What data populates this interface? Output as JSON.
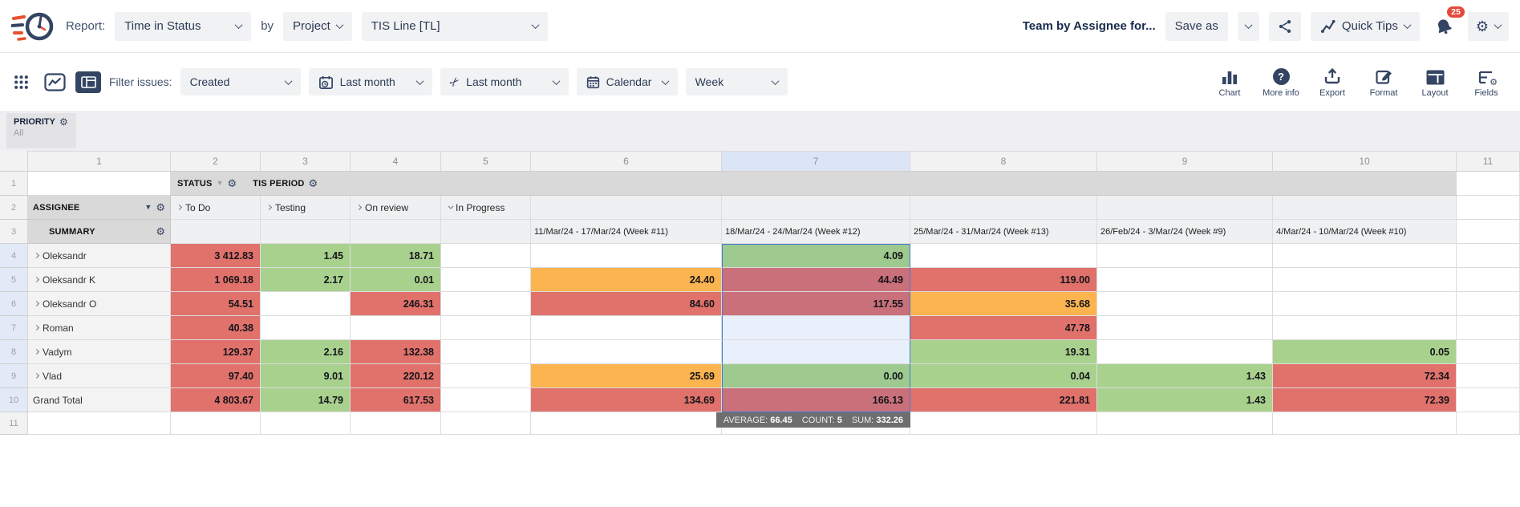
{
  "icons": {
    "gear": "⚙",
    "funnel": "▼",
    "scissors": "✂",
    "question": "?"
  },
  "colors": {
    "cell_red": "#e0716b",
    "cell_green": "#a9d18e",
    "cell_orange": "#fbb450",
    "cell_red_selected": "#c9707a",
    "cell_green_selected": "#9ec98f",
    "cell_selected_empty": "#e9effb",
    "selection_border": "#3f7bd7",
    "icon_navy": "#344563",
    "badge_red": "#e5493b"
  },
  "topbar": {
    "report_label": "Report:",
    "report_type": "Time in Status",
    "by_label": "by",
    "group_by": "Project",
    "project": "TIS Line [TL]",
    "report_name": "Team by Assignee for...",
    "save_as_label": "Save as",
    "quick_tips_label": "Quick Tips",
    "notification_count": "25"
  },
  "toolbar": {
    "filter_issues_label": "Filter issues:",
    "created_filter": "Created",
    "date_range": "Last month",
    "trim_range": "Last month",
    "calendar_mode": "Calendar",
    "time_unit": "Week",
    "actions": [
      "Chart",
      "More info",
      "Export",
      "Format",
      "Layout",
      "Fields"
    ]
  },
  "filter_chip": {
    "label": "PRIORITY",
    "value": "All"
  },
  "grid": {
    "selected_column": "7",
    "column_numbers": [
      "1",
      "2",
      "3",
      "4",
      "5",
      "6",
      "7",
      "8",
      "9",
      "10",
      "11"
    ],
    "header_row_numbers": [
      "1",
      "2",
      "3"
    ],
    "row1": {
      "status_label": "STATUS",
      "tis_period_label": "TIS PERIOD"
    },
    "row2": {
      "assignee_label": "ASSIGNEE",
      "statuses": [
        "To Do",
        "Testing",
        "On review",
        "In Progress"
      ]
    },
    "row3": {
      "summary_label": "SUMMARY",
      "periods": [
        "11/Mar/24 - 17/Mar/24 (Week #11)",
        "18/Mar/24 - 24/Mar/24 (Week #12)",
        "25/Mar/24 - 31/Mar/24 (Week #13)",
        "26/Feb/24 - 3/Mar/24 (Week #9)",
        "4/Mar/24 - 10/Mar/24 (Week #10)"
      ]
    },
    "rows": [
      {
        "num": "4",
        "name": "Oleksandr",
        "chev": true,
        "hl": true,
        "cells": [
          {
            "v": "3 412.83",
            "s": "red"
          },
          {
            "v": "1.45",
            "s": "green"
          },
          {
            "v": "18.71",
            "s": "green"
          },
          {
            "v": "",
            "s": "none"
          },
          {
            "v": "",
            "s": "none"
          },
          {
            "v": "4.09",
            "s": "selGreen"
          },
          {
            "v": "",
            "s": "none"
          },
          {
            "v": "",
            "s": "none"
          },
          {
            "v": "",
            "s": "none"
          },
          {
            "v": "",
            "s": "none"
          }
        ]
      },
      {
        "num": "5",
        "name": "Oleksandr K",
        "chev": true,
        "hl": true,
        "cells": [
          {
            "v": "1 069.18",
            "s": "red"
          },
          {
            "v": "2.17",
            "s": "green"
          },
          {
            "v": "0.01",
            "s": "green"
          },
          {
            "v": "",
            "s": "none"
          },
          {
            "v": "24.40",
            "s": "orange"
          },
          {
            "v": "44.49",
            "s": "selRed"
          },
          {
            "v": "119.00",
            "s": "red"
          },
          {
            "v": "",
            "s": "none"
          },
          {
            "v": "",
            "s": "none"
          },
          {
            "v": "",
            "s": "none"
          }
        ]
      },
      {
        "num": "6",
        "name": "Oleksandr O",
        "chev": true,
        "hl": true,
        "cells": [
          {
            "v": "54.51",
            "s": "red"
          },
          {
            "v": "",
            "s": "none"
          },
          {
            "v": "246.31",
            "s": "red"
          },
          {
            "v": "",
            "s": "none"
          },
          {
            "v": "84.60",
            "s": "red"
          },
          {
            "v": "117.55",
            "s": "selRed"
          },
          {
            "v": "35.68",
            "s": "orange"
          },
          {
            "v": "",
            "s": "none"
          },
          {
            "v": "",
            "s": "none"
          },
          {
            "v": "",
            "s": "none"
          }
        ]
      },
      {
        "num": "7",
        "name": "Roman",
        "chev": true,
        "hl": true,
        "cells": [
          {
            "v": "40.38",
            "s": "red"
          },
          {
            "v": "",
            "s": "none"
          },
          {
            "v": "",
            "s": "none"
          },
          {
            "v": "",
            "s": "none"
          },
          {
            "v": "",
            "s": "none"
          },
          {
            "v": "",
            "s": "selEmpty"
          },
          {
            "v": "47.78",
            "s": "red"
          },
          {
            "v": "",
            "s": "none"
          },
          {
            "v": "",
            "s": "none"
          },
          {
            "v": "",
            "s": "none"
          }
        ]
      },
      {
        "num": "8",
        "name": "Vadym",
        "chev": true,
        "hl": true,
        "cells": [
          {
            "v": "129.37",
            "s": "red"
          },
          {
            "v": "2.16",
            "s": "green"
          },
          {
            "v": "132.38",
            "s": "red"
          },
          {
            "v": "",
            "s": "none"
          },
          {
            "v": "",
            "s": "none"
          },
          {
            "v": "",
            "s": "selEmpty"
          },
          {
            "v": "19.31",
            "s": "green"
          },
          {
            "v": "",
            "s": "none"
          },
          {
            "v": "0.05",
            "s": "green"
          },
          {
            "v": "",
            "s": "none"
          }
        ]
      },
      {
        "num": "9",
        "name": "Vlad",
        "chev": true,
        "hl": true,
        "cells": [
          {
            "v": "97.40",
            "s": "red"
          },
          {
            "v": "9.01",
            "s": "green"
          },
          {
            "v": "220.12",
            "s": "red"
          },
          {
            "v": "",
            "s": "none"
          },
          {
            "v": "25.69",
            "s": "orange"
          },
          {
            "v": "0.00",
            "s": "selGreen"
          },
          {
            "v": "0.04",
            "s": "green"
          },
          {
            "v": "1.43",
            "s": "green"
          },
          {
            "v": "72.34",
            "s": "red"
          },
          {
            "v": "",
            "s": "none"
          }
        ]
      },
      {
        "num": "10",
        "name": "Grand Total",
        "chev": false,
        "hl": true,
        "cells": [
          {
            "v": "4 803.67",
            "s": "red"
          },
          {
            "v": "14.79",
            "s": "green"
          },
          {
            "v": "617.53",
            "s": "red"
          },
          {
            "v": "",
            "s": "none"
          },
          {
            "v": "134.69",
            "s": "red"
          },
          {
            "v": "166.13",
            "s": "selRed"
          },
          {
            "v": "221.81",
            "s": "red"
          },
          {
            "v": "1.43",
            "s": "green"
          },
          {
            "v": "72.39",
            "s": "red"
          },
          {
            "v": "",
            "s": "none"
          }
        ]
      },
      {
        "num": "11",
        "name": "",
        "chev": false,
        "hl": false,
        "cells": [
          {
            "v": "",
            "s": "none"
          },
          {
            "v": "",
            "s": "none"
          },
          {
            "v": "",
            "s": "none"
          },
          {
            "v": "",
            "s": "none"
          },
          {
            "v": "",
            "s": "none"
          },
          {
            "v": "",
            "s": "none"
          },
          {
            "v": "",
            "s": "none"
          },
          {
            "v": "",
            "s": "none"
          },
          {
            "v": "",
            "s": "none"
          },
          {
            "v": "",
            "s": "none"
          }
        ]
      }
    ]
  },
  "selection_tooltip": {
    "average_label": "AVERAGE:",
    "average_value": "66.45",
    "count_label": "COUNT:",
    "count_value": "5",
    "sum_label": "SUM:",
    "sum_value": "332.26"
  }
}
